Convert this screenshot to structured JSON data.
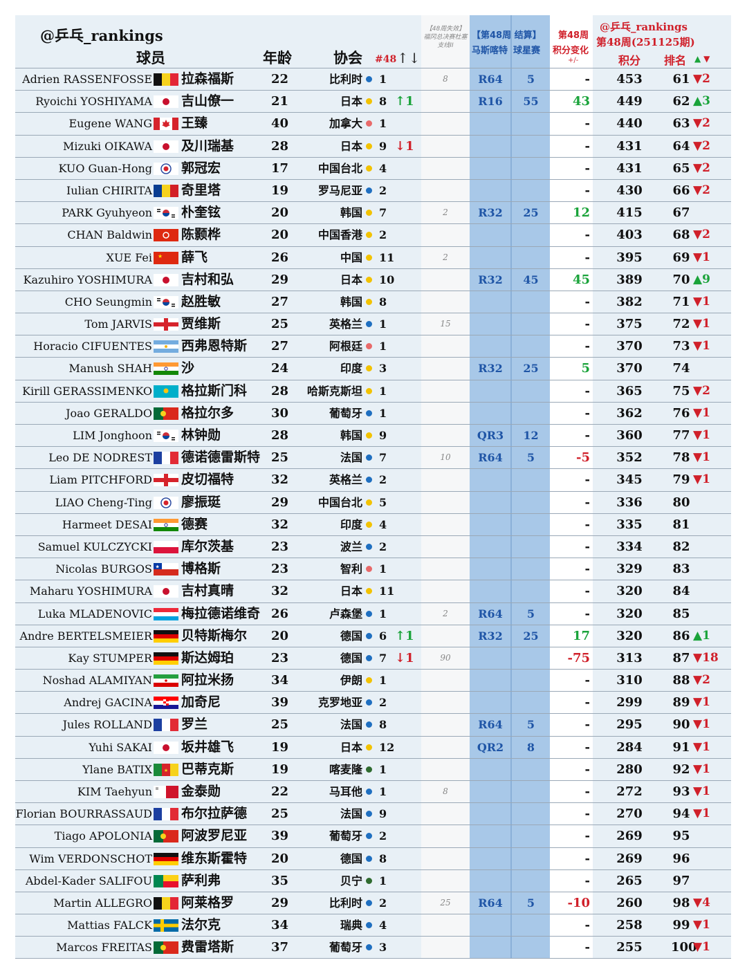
{
  "header": {
    "brand": "@乒乓_rankings",
    "player": "球员",
    "age": "年龄",
    "association": "协会",
    "n48": "#48",
    "n48_arrows": "↑↓",
    "lost_points_note": "【48周失效】福冈总决赛杜塞支线II",
    "event_title": "【第48周 结算】",
    "event_name": "马斯喀特",
    "event_type": "球星赛",
    "delta_title": "第48周",
    "delta_sub": "积分变化",
    "delta_unit": "+/-",
    "rank_brand": "@乒乓_rankings",
    "rank_week": "第48周(251125期)",
    "points": "积分",
    "rank": "排名",
    "rank_up_arrow": "▲",
    "rank_down_arrow": "▼"
  },
  "colors": {
    "europe": "#1f6fc0",
    "asia": "#f2c200",
    "america": "#e86a6a",
    "africa": "#2f6b2f",
    "event_band": "#a8c8e8",
    "up": "#1aa33a",
    "down": "#d0202a"
  },
  "rows": [
    {
      "en": "Adrien RASSENFOSSE",
      "flag": "belgium",
      "cn": "拉森福斯",
      "age": "22",
      "assoc": "比利时",
      "region": "europe",
      "n48": "1",
      "move": "",
      "lost": "8",
      "round": "R64",
      "evpts": "5",
      "delta": "-",
      "pts": "453",
      "rank": "61",
      "rchg": "▼2"
    },
    {
      "en": "Ryoichi YOSHIYAMA",
      "flag": "japan",
      "cn": "吉山僚一",
      "age": "21",
      "assoc": "日本",
      "region": "asia",
      "n48": "8",
      "move": "↑1",
      "lost": "",
      "round": "R16",
      "evpts": "55",
      "delta": "43",
      "pts": "449",
      "rank": "62",
      "rchg": "▲3"
    },
    {
      "en": "Eugene WANG",
      "flag": "canada",
      "cn": "王臻",
      "age": "40",
      "assoc": "加拿大",
      "region": "america",
      "n48": "1",
      "move": "",
      "lost": "",
      "round": "",
      "evpts": "",
      "delta": "-",
      "pts": "440",
      "rank": "63",
      "rchg": "▼2"
    },
    {
      "en": "Mizuki OIKAWA",
      "flag": "japan",
      "cn": "及川瑞基",
      "age": "28",
      "assoc": "日本",
      "region": "asia",
      "n48": "9",
      "move": "↓1",
      "lost": "",
      "round": "",
      "evpts": "",
      "delta": "-",
      "pts": "431",
      "rank": "64",
      "rchg": "▼2"
    },
    {
      "en": "KUO Guan-Hong",
      "flag": "tpe",
      "cn": "郭冠宏",
      "age": "17",
      "assoc": "中国台北",
      "region": "asia",
      "n48": "4",
      "move": "",
      "lost": "",
      "round": "",
      "evpts": "",
      "delta": "-",
      "pts": "431",
      "rank": "65",
      "rchg": "▼2"
    },
    {
      "en": "Iulian CHIRITA",
      "flag": "romania",
      "cn": "奇里塔",
      "age": "19",
      "assoc": "罗马尼亚",
      "region": "europe",
      "n48": "2",
      "move": "",
      "lost": "",
      "round": "",
      "evpts": "",
      "delta": "-",
      "pts": "430",
      "rank": "66",
      "rchg": "▼2"
    },
    {
      "en": "PARK Gyuhyeon",
      "flag": "korea",
      "cn": "朴奎铉",
      "age": "20",
      "assoc": "韩国",
      "region": "asia",
      "n48": "7",
      "move": "",
      "lost": "2",
      "round": "R32",
      "evpts": "25",
      "delta": "12",
      "pts": "415",
      "rank": "67",
      "rchg": ""
    },
    {
      "en": "CHAN Baldwin",
      "flag": "hongkong",
      "cn": "陈颢桦",
      "age": "20",
      "assoc": "中国香港",
      "region": "asia",
      "n48": "2",
      "move": "",
      "lost": "",
      "round": "",
      "evpts": "",
      "delta": "-",
      "pts": "403",
      "rank": "68",
      "rchg": "▼2"
    },
    {
      "en": "XUE Fei",
      "flag": "china",
      "cn": "薛飞",
      "age": "26",
      "assoc": "中国",
      "region": "asia",
      "n48": "11",
      "move": "",
      "lost": "2",
      "round": "",
      "evpts": "",
      "delta": "-",
      "pts": "395",
      "rank": "69",
      "rchg": "▼1"
    },
    {
      "en": "Kazuhiro YOSHIMURA",
      "flag": "japan",
      "cn": "吉村和弘",
      "age": "29",
      "assoc": "日本",
      "region": "asia",
      "n48": "10",
      "move": "",
      "lost": "",
      "round": "R32",
      "evpts": "45",
      "delta": "45",
      "pts": "389",
      "rank": "70",
      "rchg": "▲9"
    },
    {
      "en": "CHO Seungmin",
      "flag": "korea",
      "cn": "赵胜敏",
      "age": "27",
      "assoc": "韩国",
      "region": "asia",
      "n48": "8",
      "move": "",
      "lost": "",
      "round": "",
      "evpts": "",
      "delta": "-",
      "pts": "382",
      "rank": "71",
      "rchg": "▼1"
    },
    {
      "en": "Tom JARVIS",
      "flag": "england",
      "cn": "贾维斯",
      "age": "25",
      "assoc": "英格兰",
      "region": "europe",
      "n48": "1",
      "move": "",
      "lost": "15",
      "round": "",
      "evpts": "",
      "delta": "-",
      "pts": "375",
      "rank": "72",
      "rchg": "▼1"
    },
    {
      "en": "Horacio CIFUENTES",
      "flag": "argentina",
      "cn": "西弗恩特斯",
      "age": "27",
      "assoc": "阿根廷",
      "region": "america",
      "n48": "1",
      "move": "",
      "lost": "",
      "round": "",
      "evpts": "",
      "delta": "-",
      "pts": "370",
      "rank": "73",
      "rchg": "▼1"
    },
    {
      "en": "Manush SHAH",
      "flag": "india",
      "cn": "沙",
      "age": "24",
      "assoc": "印度",
      "region": "asia",
      "n48": "3",
      "move": "",
      "lost": "",
      "round": "R32",
      "evpts": "25",
      "delta": "5",
      "pts": "370",
      "rank": "74",
      "rchg": ""
    },
    {
      "en": "Kirill GERASSIMENKO",
      "flag": "kazakhstan",
      "cn": "格拉斯门科",
      "age": "28",
      "assoc": "哈斯克斯坦",
      "region": "asia",
      "n48": "1",
      "move": "",
      "lost": "",
      "round": "",
      "evpts": "",
      "delta": "-",
      "pts": "365",
      "rank": "75",
      "rchg": "▼2"
    },
    {
      "en": "Joao GERALDO",
      "flag": "portugal",
      "cn": "格拉尔多",
      "age": "30",
      "assoc": "葡萄牙",
      "region": "europe",
      "n48": "1",
      "move": "",
      "lost": "",
      "round": "",
      "evpts": "",
      "delta": "-",
      "pts": "362",
      "rank": "76",
      "rchg": "▼1"
    },
    {
      "en": "LIM Jonghoon",
      "flag": "korea",
      "cn": "林钟勋",
      "age": "28",
      "assoc": "韩国",
      "region": "asia",
      "n48": "9",
      "move": "",
      "lost": "",
      "round": "QR3",
      "evpts": "12",
      "delta": "-",
      "pts": "360",
      "rank": "77",
      "rchg": "▼1"
    },
    {
      "en": "Leo DE NODREST",
      "flag": "france",
      "cn": "德诺德雷斯特",
      "age": "25",
      "assoc": "法国",
      "region": "europe",
      "n48": "7",
      "move": "",
      "lost": "10",
      "round": "R64",
      "evpts": "5",
      "delta": "-5",
      "pts": "352",
      "rank": "78",
      "rchg": "▼1"
    },
    {
      "en": "Liam PITCHFORD",
      "flag": "england",
      "cn": "皮切福特",
      "age": "32",
      "assoc": "英格兰",
      "region": "europe",
      "n48": "2",
      "move": "",
      "lost": "",
      "round": "",
      "evpts": "",
      "delta": "-",
      "pts": "345",
      "rank": "79",
      "rchg": "▼1"
    },
    {
      "en": "LIAO Cheng-Ting",
      "flag": "tpe",
      "cn": "廖振珽",
      "age": "29",
      "assoc": "中国台北",
      "region": "asia",
      "n48": "5",
      "move": "",
      "lost": "",
      "round": "",
      "evpts": "",
      "delta": "-",
      "pts": "336",
      "rank": "80",
      "rchg": ""
    },
    {
      "en": "Harmeet DESAI",
      "flag": "india",
      "cn": "德赛",
      "age": "32",
      "assoc": "印度",
      "region": "asia",
      "n48": "4",
      "move": "",
      "lost": "",
      "round": "",
      "evpts": "",
      "delta": "-",
      "pts": "335",
      "rank": "81",
      "rchg": ""
    },
    {
      "en": "Samuel KULCZYCKI",
      "flag": "poland",
      "cn": "库尔茨基",
      "age": "23",
      "assoc": "波兰",
      "region": "europe",
      "n48": "2",
      "move": "",
      "lost": "",
      "round": "",
      "evpts": "",
      "delta": "-",
      "pts": "334",
      "rank": "82",
      "rchg": ""
    },
    {
      "en": "Nicolas BURGOS",
      "flag": "chile",
      "cn": "博格斯",
      "age": "23",
      "assoc": "智利",
      "region": "america",
      "n48": "1",
      "move": "",
      "lost": "",
      "round": "",
      "evpts": "",
      "delta": "-",
      "pts": "329",
      "rank": "83",
      "rchg": ""
    },
    {
      "en": "Maharu YOSHIMURA",
      "flag": "japan",
      "cn": "吉村真晴",
      "age": "32",
      "assoc": "日本",
      "region": "asia",
      "n48": "11",
      "move": "",
      "lost": "",
      "round": "",
      "evpts": "",
      "delta": "-",
      "pts": "320",
      "rank": "84",
      "rchg": ""
    },
    {
      "en": "Luka MLADENOVIC",
      "flag": "luxembourg",
      "cn": "梅拉德诺维奇",
      "age": "26",
      "assoc": "卢森堡",
      "region": "europe",
      "n48": "1",
      "move": "",
      "lost": "2",
      "round": "R64",
      "evpts": "5",
      "delta": "-",
      "pts": "320",
      "rank": "85",
      "rchg": ""
    },
    {
      "en": "Andre BERTELSMEIER",
      "flag": "germany",
      "cn": "贝特斯梅尔",
      "age": "20",
      "assoc": "德国",
      "region": "europe",
      "n48": "6",
      "move": "↑1",
      "lost": "",
      "round": "R32",
      "evpts": "25",
      "delta": "17",
      "pts": "320",
      "rank": "86",
      "rchg": "▲1"
    },
    {
      "en": "Kay STUMPER",
      "flag": "germany",
      "cn": "斯达姆珀",
      "age": "23",
      "assoc": "德国",
      "region": "europe",
      "n48": "7",
      "move": "↓1",
      "lost": "90",
      "round": "",
      "evpts": "",
      "delta": "-75",
      "pts": "313",
      "rank": "87",
      "rchg": "▼18"
    },
    {
      "en": "Noshad ALAMIYAN",
      "flag": "iran",
      "cn": "阿拉米扬",
      "age": "34",
      "assoc": "伊朗",
      "region": "asia",
      "n48": "1",
      "move": "",
      "lost": "",
      "round": "",
      "evpts": "",
      "delta": "-",
      "pts": "310",
      "rank": "88",
      "rchg": "▼2"
    },
    {
      "en": "Andrej GACINA",
      "flag": "croatia",
      "cn": "加奇尼",
      "age": "39",
      "assoc": "克罗地亚",
      "region": "europe",
      "n48": "2",
      "move": "",
      "lost": "",
      "round": "",
      "evpts": "",
      "delta": "-",
      "pts": "299",
      "rank": "89",
      "rchg": "▼1"
    },
    {
      "en": "Jules ROLLAND",
      "flag": "france",
      "cn": "罗兰",
      "age": "25",
      "assoc": "法国",
      "region": "europe",
      "n48": "8",
      "move": "",
      "lost": "",
      "round": "R64",
      "evpts": "5",
      "delta": "-",
      "pts": "295",
      "rank": "90",
      "rchg": "▼1"
    },
    {
      "en": "Yuhi SAKAI",
      "flag": "japan",
      "cn": "坂井雄飞",
      "age": "19",
      "assoc": "日本",
      "region": "asia",
      "n48": "12",
      "move": "",
      "lost": "",
      "round": "QR2",
      "evpts": "8",
      "delta": "-",
      "pts": "284",
      "rank": "91",
      "rchg": "▼1"
    },
    {
      "en": "Ylane BATIX",
      "flag": "cameroon",
      "cn": "巴蒂克斯",
      "age": "19",
      "assoc": "喀麦隆",
      "region": "africa",
      "n48": "1",
      "move": "",
      "lost": "",
      "round": "",
      "evpts": "",
      "delta": "-",
      "pts": "280",
      "rank": "92",
      "rchg": "▼1"
    },
    {
      "en": "KIM Taehyun",
      "flag": "malta",
      "cn": "金泰勋",
      "age": "22",
      "assoc": "马耳他",
      "region": "europe",
      "n48": "1",
      "move": "",
      "lost": "8",
      "round": "",
      "evpts": "",
      "delta": "-",
      "pts": "272",
      "rank": "93",
      "rchg": "▼1"
    },
    {
      "en": "Florian BOURRASSAUD",
      "flag": "france",
      "cn": "布尔拉萨德",
      "age": "25",
      "assoc": "法国",
      "region": "europe",
      "n48": "9",
      "move": "",
      "lost": "",
      "round": "",
      "evpts": "",
      "delta": "-",
      "pts": "270",
      "rank": "94",
      "rchg": "▼1"
    },
    {
      "en": "Tiago APOLONIA",
      "flag": "portugal",
      "cn": "阿波罗尼亚",
      "age": "39",
      "assoc": "葡萄牙",
      "region": "europe",
      "n48": "2",
      "move": "",
      "lost": "",
      "round": "",
      "evpts": "",
      "delta": "-",
      "pts": "269",
      "rank": "95",
      "rchg": ""
    },
    {
      "en": "Wim VERDONSCHOT",
      "flag": "germany",
      "cn": "维东斯霍特",
      "age": "20",
      "assoc": "德国",
      "region": "europe",
      "n48": "8",
      "move": "",
      "lost": "",
      "round": "",
      "evpts": "",
      "delta": "-",
      "pts": "269",
      "rank": "96",
      "rchg": ""
    },
    {
      "en": "Abdel-Kader SALIFOU",
      "flag": "benin",
      "cn": "萨利弗",
      "age": "35",
      "assoc": "贝宁",
      "region": "africa",
      "n48": "1",
      "move": "",
      "lost": "",
      "round": "",
      "evpts": "",
      "delta": "-",
      "pts": "265",
      "rank": "97",
      "rchg": ""
    },
    {
      "en": "Martin ALLEGRO",
      "flag": "belgium",
      "cn": "阿莱格罗",
      "age": "29",
      "assoc": "比利时",
      "region": "europe",
      "n48": "2",
      "move": "",
      "lost": "25",
      "round": "R64",
      "evpts": "5",
      "delta": "-10",
      "pts": "260",
      "rank": "98",
      "rchg": "▼4"
    },
    {
      "en": "Mattias FALCK",
      "flag": "sweden",
      "cn": "法尔克",
      "age": "34",
      "assoc": "瑞典",
      "region": "europe",
      "n48": "4",
      "move": "",
      "lost": "",
      "round": "",
      "evpts": "",
      "delta": "-",
      "pts": "258",
      "rank": "99",
      "rchg": "▼1"
    },
    {
      "en": "Marcos FREITAS",
      "flag": "portugal",
      "cn": "费雷塔斯",
      "age": "37",
      "assoc": "葡萄牙",
      "region": "europe",
      "n48": "3",
      "move": "",
      "lost": "",
      "round": "",
      "evpts": "",
      "delta": "-",
      "pts": "255",
      "rank": "100",
      "rchg": "▼1"
    }
  ]
}
